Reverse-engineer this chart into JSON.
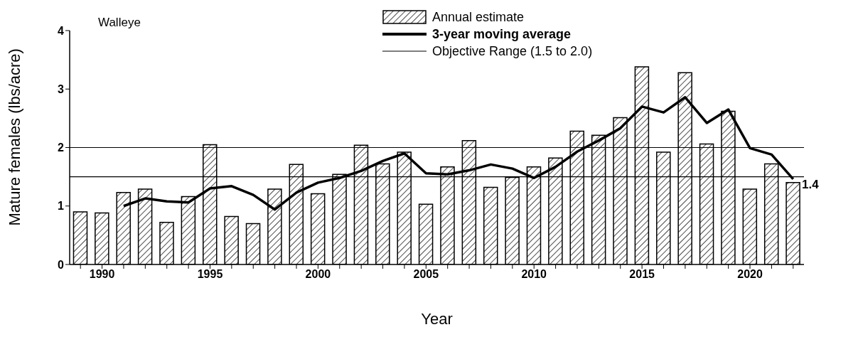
{
  "chart_data": {
    "type": "bar",
    "xlabel": "Year",
    "ylabel": "Mature females (lbs/acre)",
    "categories": [
      null,
      "1990",
      null,
      null,
      null,
      null,
      "1995",
      null,
      null,
      null,
      null,
      "2000",
      null,
      null,
      null,
      null,
      "2005",
      null,
      null,
      null,
      null,
      "2010",
      null,
      null,
      null,
      null,
      "2015",
      null,
      null,
      null,
      null,
      "2020",
      null,
      null
    ],
    "series": [
      {
        "name": "Annual estimate",
        "color": "#000000",
        "values": [
          0.9,
          0.88,
          1.23,
          1.29,
          0.72,
          1.16,
          2.05,
          0.82,
          0.7,
          1.29,
          1.71,
          1.21,
          1.54,
          2.04,
          1.72,
          1.92,
          1.03,
          1.67,
          2.12,
          1.32,
          1.49,
          1.67,
          1.82,
          2.28,
          2.21,
          2.51,
          3.38,
          1.92,
          3.28,
          2.06,
          2.62,
          1.29,
          1.72,
          1.4
        ],
        "value_labels": [
          null,
          null,
          null,
          null,
          null,
          null,
          null,
          null,
          null,
          null,
          null,
          null,
          null,
          null,
          null,
          null,
          null,
          null,
          null,
          null,
          null,
          null,
          null,
          null,
          null,
          null,
          null,
          null,
          null,
          null,
          null,
          null,
          null,
          "1.4"
        ]
      },
      {
        "name": "3-year moving average",
        "type": "line",
        "color": "#000000",
        "values": [
          null,
          null,
          1.0,
          1.13,
          1.08,
          1.06,
          1.3,
          1.34,
          1.19,
          0.94,
          1.23,
          1.4,
          1.48,
          1.6,
          1.77,
          1.9,
          1.56,
          1.54,
          1.61,
          1.71,
          1.64,
          1.48,
          1.67,
          1.93,
          2.12,
          2.33,
          2.7,
          2.6,
          2.86,
          2.42,
          2.65,
          1.99,
          1.88,
          1.46
        ]
      }
    ],
    "ylim": [
      0,
      4
    ],
    "yticks": [
      0,
      1,
      2,
      3,
      4
    ],
    "grid": false,
    "legend": "top right",
    "marker": "none",
    "line_style": "solid",
    "ref_lines": [
      {
        "axis": "y",
        "value": 1.5,
        "label": "Objective Range (1.5 to 2.0)",
        "color": "#000000"
      },
      {
        "axis": "y",
        "value": 2.0,
        "color": "#000000"
      }
    ],
    "annotations": [
      "Walleye"
    ]
  }
}
